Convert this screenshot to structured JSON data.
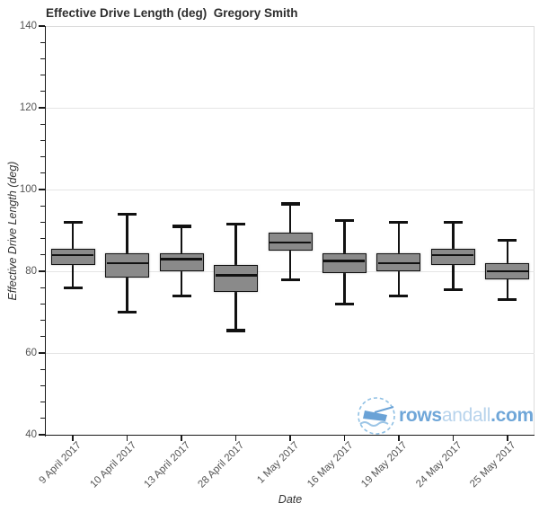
{
  "chart_data": {
    "type": "boxplot",
    "title": "Effective Drive Length (deg)  Gregory Smith",
    "xlabel": "Date",
    "ylabel": "Effective Drive Length (deg)",
    "ylim": [
      40,
      140
    ],
    "yticks": [
      40,
      60,
      80,
      100,
      120,
      140
    ],
    "minor_tick_step": 4,
    "grid": "horizontal lines at major y ticks",
    "legend": "none",
    "categories": [
      "9 April 2017",
      "10 April 2017",
      "13 April 2017",
      "28 April 2017",
      "1 May 2017",
      "16 May 2017",
      "19 May 2017",
      "24 May 2017",
      "25 May 2017"
    ],
    "boxes": [
      {
        "category": "9 April 2017",
        "whisker_low": 76,
        "q1": 81.5,
        "median": 84,
        "q3": 85.5,
        "whisker_high": 92
      },
      {
        "category": "10 April 2017",
        "whisker_low": 70,
        "q1": 78.5,
        "median": 82,
        "q3": 84.5,
        "whisker_high": 94
      },
      {
        "category": "13 April 2017",
        "whisker_low": 74,
        "q1": 80,
        "median": 83,
        "q3": 84.5,
        "whisker_high": 91
      },
      {
        "category": "28 April 2017",
        "whisker_low": 65.5,
        "q1": 75,
        "median": 79,
        "q3": 81.5,
        "whisker_high": 91.5
      },
      {
        "category": "1 May 2017",
        "whisker_low": 78,
        "q1": 85,
        "median": 87,
        "q3": 89.5,
        "whisker_high": 96.5
      },
      {
        "category": "16 May 2017",
        "whisker_low": 72,
        "q1": 79.5,
        "median": 82.5,
        "q3": 84.5,
        "whisker_high": 92.5
      },
      {
        "category": "19 May 2017",
        "whisker_low": 74,
        "q1": 80,
        "median": 82,
        "q3": 84.5,
        "whisker_high": 92
      },
      {
        "category": "24 May 2017",
        "whisker_low": 75.5,
        "q1": 81.5,
        "median": 84,
        "q3": 85.5,
        "whisker_high": 92
      },
      {
        "category": "25 May 2017",
        "whisker_low": 73,
        "q1": 78,
        "median": 80,
        "q3": 82,
        "whisker_high": 87.5
      }
    ],
    "colors": {
      "box_fill": "#8a8a8a",
      "box_border": "#111111",
      "median": "#111111",
      "whisker": "#111111",
      "grid": "#e5e5e5",
      "axis": "#1a1a1a",
      "tick_label": "#555555",
      "title": "#2e2e2e"
    }
  },
  "watermark": {
    "site": "rowsandall.com",
    "part_rows": "rows",
    "part_andall": "andall",
    "part_com": ".com",
    "color_bold": "#6fa6d8",
    "color_light": "#b7d3ec",
    "logo": "rowing-boat-in-dashed-circle"
  }
}
